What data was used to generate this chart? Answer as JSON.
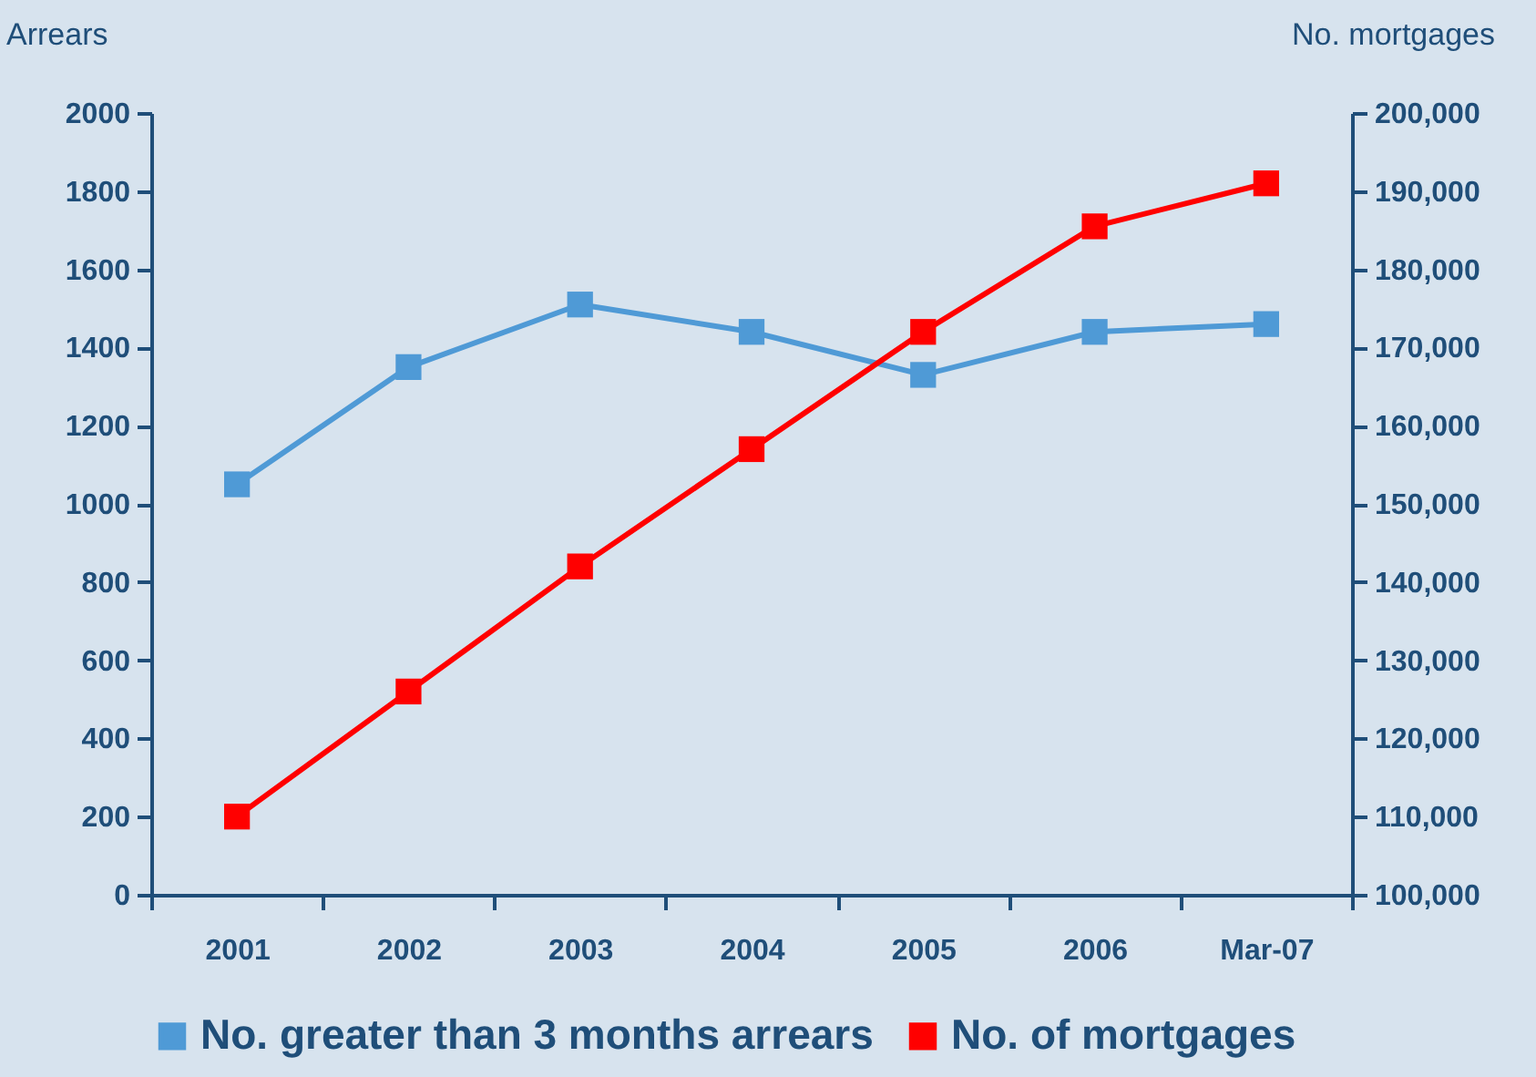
{
  "chart_data": {
    "type": "line",
    "categories": [
      "2001",
      "2002",
      "2003",
      "2004",
      "2005",
      "2006",
      "Mar-07"
    ],
    "ylabel": "Arrears",
    "y2label": "No. mortgages",
    "ylim": [
      0,
      2000
    ],
    "yticks": [
      0,
      200,
      400,
      600,
      800,
      1000,
      1200,
      1400,
      1600,
      1800,
      2000
    ],
    "y2lim": [
      100000,
      200000
    ],
    "y2ticks": [
      {
        "value": 100000,
        "label": "100,000"
      },
      {
        "value": 110000,
        "label": "110,000"
      },
      {
        "value": 120000,
        "label": "120,000"
      },
      {
        "value": 130000,
        "label": "130,000"
      },
      {
        "value": 140000,
        "label": "140,000"
      },
      {
        "value": 150000,
        "label": "150,000"
      },
      {
        "value": 160000,
        "label": "160,000"
      },
      {
        "value": 170000,
        "label": "170,000"
      },
      {
        "value": 180000,
        "label": "180,000"
      },
      {
        "value": 190000,
        "label": "190,000"
      },
      {
        "value": 200000,
        "label": "200,000"
      }
    ],
    "series": [
      {
        "name": "No. greater than 3 months arrears",
        "color": "#4f9ad6",
        "values": [
          1050,
          1350,
          1510,
          1440,
          1330,
          1440,
          1460
        ]
      },
      {
        "name": "No. of mortgages",
        "color": "#ff0000",
        "axis": "y2",
        "values": [
          110000,
          126000,
          142000,
          157000,
          172000,
          185500,
          191000
        ]
      }
    ],
    "grid": false,
    "legend": "bottom",
    "marker": "square",
    "line_style": "solid"
  }
}
